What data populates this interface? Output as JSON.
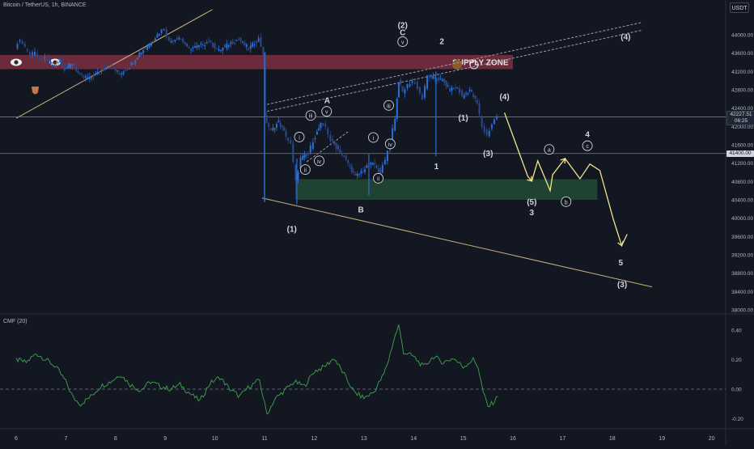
{
  "header": {
    "symbol": "Bitcoin / TetherUS, 1h, BINANCE",
    "currency": "USDT"
  },
  "indicator": {
    "label": "CMF (20)"
  },
  "chart_data": {
    "type": "candlestick",
    "y_axis": {
      "ticks": [
        44000,
        43600,
        43200,
        42800,
        42400,
        42000,
        41600,
        41200,
        40800,
        40400,
        40000,
        39600,
        39200,
        38800,
        38400,
        38000
      ],
      "tick_labels": [
        "44000.00",
        "43600.00",
        "43200.00",
        "42800.00",
        "42400.00",
        "42000.00",
        "41600.00",
        "41200.00",
        "40800.00",
        "40400.00",
        "40000.00",
        "39600.00",
        "39200.00",
        "38800.00",
        "38400.00",
        "38000.00"
      ]
    },
    "x_axis": {
      "ticks": [
        6,
        7,
        8,
        9,
        10,
        11,
        12,
        13,
        14,
        15,
        16,
        17,
        18,
        19,
        20
      ],
      "tick_labels": [
        "6",
        "7",
        "8",
        "9",
        "10",
        "11",
        "12",
        "13",
        "14",
        "15",
        "16",
        "17",
        "18",
        "19",
        "20"
      ]
    },
    "price_series": [
      [
        6.0,
        43750
      ],
      [
        6.1,
        43900
      ],
      [
        6.2,
        43700
      ],
      [
        6.3,
        43550
      ],
      [
        6.4,
        43600
      ],
      [
        6.5,
        43420
      ],
      [
        6.6,
        43500
      ],
      [
        6.75,
        43300
      ],
      [
        6.9,
        43450
      ],
      [
        7.0,
        43250
      ],
      [
        7.15,
        43380
      ],
      [
        7.3,
        43100
      ],
      [
        7.5,
        43050
      ],
      [
        7.7,
        43200
      ],
      [
        7.9,
        43350
      ],
      [
        8.1,
        43150
      ],
      [
        8.3,
        43300
      ],
      [
        8.5,
        43600
      ],
      [
        8.7,
        43800
      ],
      [
        8.9,
        44050
      ],
      [
        9.0,
        44150
      ],
      [
        9.1,
        43850
      ],
      [
        9.3,
        43950
      ],
      [
        9.5,
        43700
      ],
      [
        9.7,
        43750
      ],
      [
        9.9,
        43850
      ],
      [
        10.1,
        43650
      ],
      [
        10.3,
        43800
      ],
      [
        10.5,
        43900
      ],
      [
        10.7,
        43700
      ],
      [
        10.9,
        43900
      ],
      [
        11.0,
        43600
      ],
      [
        11.02,
        42200
      ],
      [
        11.15,
        41900
      ],
      [
        11.3,
        42100
      ],
      [
        11.45,
        41800
      ],
      [
        11.55,
        41600
      ],
      [
        11.65,
        40800
      ],
      [
        11.75,
        41300
      ],
      [
        11.9,
        41400
      ],
      [
        12.0,
        41700
      ],
      [
        12.15,
        42050
      ],
      [
        12.25,
        42000
      ],
      [
        12.35,
        41700
      ],
      [
        12.5,
        41500
      ],
      [
        12.7,
        41200
      ],
      [
        12.85,
        40900
      ],
      [
        13.0,
        41050
      ],
      [
        13.2,
        41200
      ],
      [
        13.35,
        41000
      ],
      [
        13.45,
        41250
      ],
      [
        13.55,
        41700
      ],
      [
        13.65,
        42200
      ],
      [
        13.72,
        43000
      ],
      [
        13.8,
        42750
      ],
      [
        13.9,
        42900
      ],
      [
        14.0,
        43000
      ],
      [
        14.1,
        42850
      ],
      [
        14.2,
        42600
      ],
      [
        14.3,
        43100
      ],
      [
        14.45,
        43050
      ],
      [
        14.6,
        43000
      ],
      [
        14.75,
        42800
      ],
      [
        14.9,
        42850
      ],
      [
        15.0,
        42650
      ],
      [
        15.15,
        42800
      ],
      [
        15.3,
        42500
      ],
      [
        15.4,
        42000
      ],
      [
        15.5,
        41800
      ],
      [
        15.6,
        42050
      ],
      [
        15.7,
        42230
      ]
    ],
    "current_price": "42227.51",
    "countdown": "06:25",
    "level_price": "41400.00",
    "zones": [
      {
        "name": "SUPPLY ZONE",
        "y_range": [
          43250,
          43560
        ],
        "color": "#7d2f3e"
      },
      {
        "name": "",
        "y_range": [
          40400,
          40850
        ],
        "color": "#224a35"
      }
    ],
    "cmf": {
      "ticks": [
        0.4,
        0.2,
        0.0,
        -0.2
      ],
      "tick_labels": [
        "0.40",
        "0.20",
        "0.00",
        "-0.20"
      ],
      "values": [
        [
          6.0,
          0.2
        ],
        [
          6.2,
          0.18
        ],
        [
          6.4,
          0.24
        ],
        [
          6.6,
          0.2
        ],
        [
          6.8,
          0.15
        ],
        [
          7.0,
          0.05
        ],
        [
          7.15,
          -0.06
        ],
        [
          7.3,
          -0.1
        ],
        [
          7.5,
          -0.05
        ],
        [
          7.7,
          0.02
        ],
        [
          7.9,
          0.05
        ],
        [
          8.1,
          0.1
        ],
        [
          8.3,
          0.03
        ],
        [
          8.5,
          -0.01
        ],
        [
          8.7,
          0.05
        ],
        [
          8.9,
          0.02
        ],
        [
          9.1,
          0.0
        ],
        [
          9.3,
          0.03
        ],
        [
          9.5,
          -0.03
        ],
        [
          9.7,
          -0.08
        ],
        [
          9.9,
          0.04
        ],
        [
          10.1,
          0.08
        ],
        [
          10.3,
          0.0
        ],
        [
          10.5,
          -0.05
        ],
        [
          10.7,
          0.02
        ],
        [
          10.9,
          0.06
        ],
        [
          11.0,
          -0.1
        ],
        [
          11.05,
          -0.17
        ],
        [
          11.2,
          -0.07
        ],
        [
          11.4,
          -0.01
        ],
        [
          11.6,
          0.05
        ],
        [
          11.8,
          0.02
        ],
        [
          12.0,
          0.12
        ],
        [
          12.2,
          0.15
        ],
        [
          12.4,
          0.21
        ],
        [
          12.6,
          0.1
        ],
        [
          12.8,
          -0.02
        ],
        [
          13.0,
          -0.06
        ],
        [
          13.2,
          -0.02
        ],
        [
          13.4,
          0.1
        ],
        [
          13.5,
          0.2
        ],
        [
          13.6,
          0.33
        ],
        [
          13.7,
          0.43
        ],
        [
          13.8,
          0.25
        ],
        [
          14.0,
          0.22
        ],
        [
          14.2,
          0.15
        ],
        [
          14.4,
          0.22
        ],
        [
          14.6,
          0.18
        ],
        [
          14.8,
          0.21
        ],
        [
          15.0,
          0.15
        ],
        [
          15.2,
          0.2
        ],
        [
          15.3,
          0.15
        ],
        [
          15.4,
          -0.02
        ],
        [
          15.5,
          -0.12
        ],
        [
          15.6,
          -0.09
        ],
        [
          15.7,
          -0.05
        ]
      ]
    },
    "annotations": [
      {
        "text": "(2)",
        "x": 13.78,
        "y": 44200
      },
      {
        "text": "C",
        "x": 13.78,
        "y": 44040
      },
      {
        "text": "v",
        "x": 13.78,
        "y": 43850,
        "circle": true
      },
      {
        "text": "2",
        "x": 14.57,
        "y": 43850
      },
      {
        "text": "(4)",
        "x": 18.27,
        "y": 43950
      },
      {
        "text": "A",
        "x": 12.26,
        "y": 42560
      },
      {
        "text": "v",
        "x": 12.25,
        "y": 42330,
        "circle": true
      },
      {
        "text": "iii",
        "x": 11.93,
        "y": 42240,
        "circle": true
      },
      {
        "text": "i",
        "x": 11.7,
        "y": 41770,
        "circle": true
      },
      {
        "text": "iv",
        "x": 12.1,
        "y": 41250,
        "circle": true
      },
      {
        "text": "ii",
        "x": 11.82,
        "y": 41060,
        "circle": true
      },
      {
        "text": "B",
        "x": 12.94,
        "y": 40180
      },
      {
        "text": "(1)",
        "x": 11.55,
        "y": 39760
      },
      {
        "text": "iii",
        "x": 13.5,
        "y": 42460,
        "circle": true
      },
      {
        "text": "i",
        "x": 13.19,
        "y": 41760,
        "circle": true
      },
      {
        "text": "iv",
        "x": 13.53,
        "y": 41620,
        "circle": true
      },
      {
        "text": "ii",
        "x": 13.29,
        "y": 40870,
        "circle": true
      },
      {
        "text": "1",
        "x": 14.46,
        "y": 41120
      },
      {
        "text": "(1)",
        "x": 15.0,
        "y": 42180
      },
      {
        "text": "(3)",
        "x": 15.5,
        "y": 41410
      },
      {
        "text": "(4)",
        "x": 15.83,
        "y": 42640
      },
      {
        "text": "(5)",
        "x": 16.38,
        "y": 40350
      },
      {
        "text": "3",
        "x": 16.38,
        "y": 40120
      },
      {
        "text": "a",
        "x": 16.73,
        "y": 41500,
        "circle": true
      },
      {
        "text": "b",
        "x": 17.07,
        "y": 40360,
        "circle": true
      },
      {
        "text": "4",
        "x": 17.5,
        "y": 41820
      },
      {
        "text": "c",
        "x": 17.5,
        "y": 41580,
        "circle": true
      },
      {
        "text": "5",
        "x": 18.17,
        "y": 39020
      },
      {
        "text": "(3)",
        "x": 18.2,
        "y": 38550
      }
    ],
    "projection": [
      [
        15.83,
        42300
      ],
      [
        16.3,
        40910
      ],
      [
        16.38,
        40810
      ],
      [
        16.5,
        41250
      ],
      [
        16.75,
        40600
      ],
      [
        16.8,
        40950
      ],
      [
        17.05,
        41300
      ],
      [
        17.35,
        40860
      ],
      [
        17.55,
        41180
      ],
      [
        17.75,
        41040
      ],
      [
        18.02,
        39980
      ],
      [
        18.19,
        39400
      ],
      [
        18.3,
        39650
      ]
    ],
    "trendlines": [
      {
        "from": [
          6.0,
          42180
        ],
        "to": [
          9.95,
          44550
        ],
        "color": "#c8b27a"
      },
      {
        "from": [
          10.95,
          40440
        ],
        "to": [
          18.8,
          38500
        ],
        "color": "#c8b27a"
      },
      {
        "from": [
          11.05,
          42480
        ],
        "to": [
          18.6,
          44270
        ],
        "color": "#9aa0a8",
        "dashed": true
      },
      {
        "from": [
          11.05,
          42330
        ],
        "to": [
          18.6,
          44100
        ],
        "color": "#9aa0a8",
        "dashed": true
      },
      {
        "from": [
          11.85,
          41230
        ],
        "to": [
          12.7,
          41900
        ],
        "color": "#9aa0a8",
        "dashed": true
      }
    ],
    "hlines": [
      42210,
      41410
    ]
  }
}
